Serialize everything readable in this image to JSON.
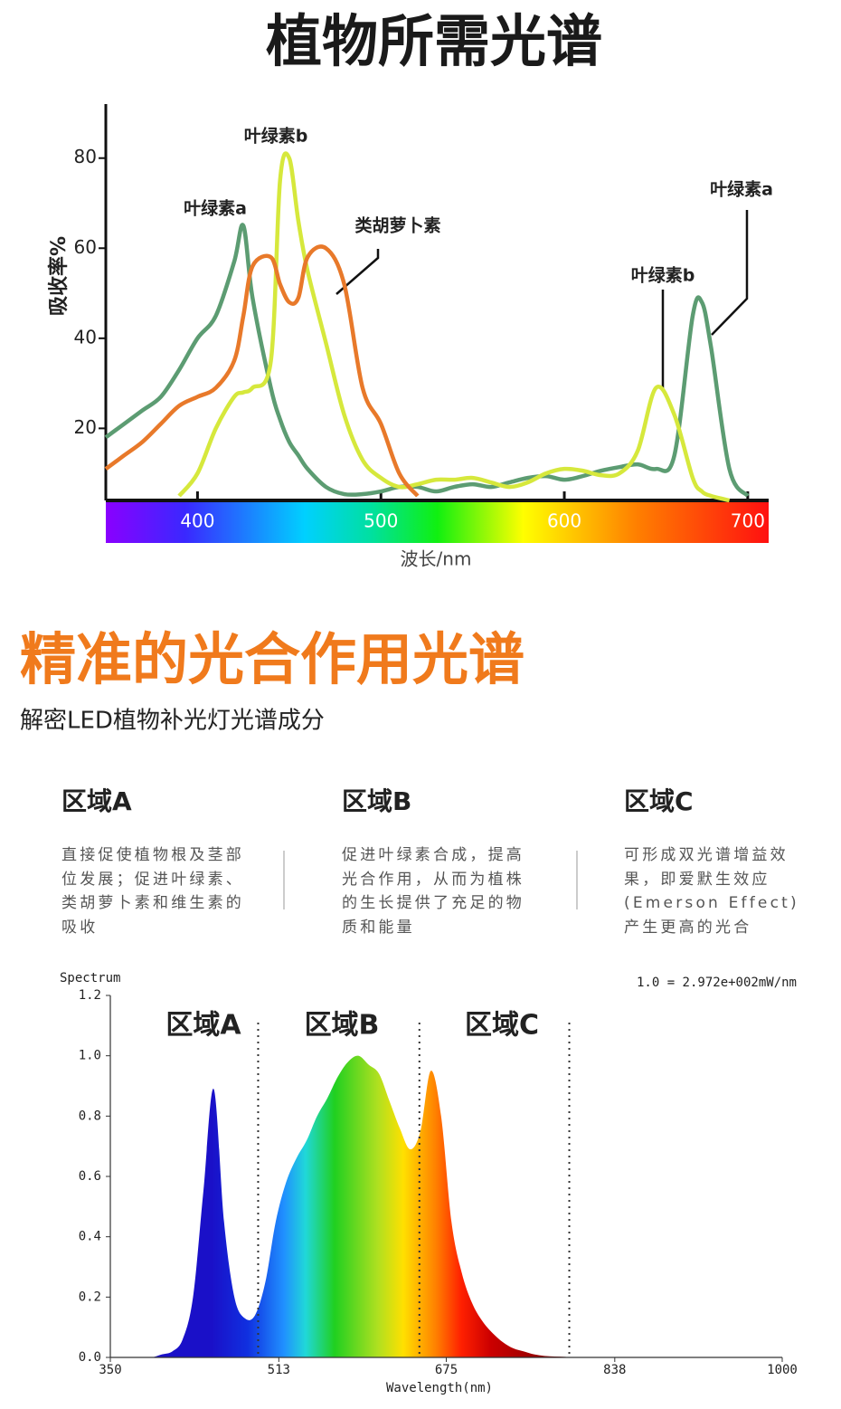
{
  "header": {
    "title": "植物所需光谱"
  },
  "section": {
    "title": "精准的光合作用光谱",
    "subtitle": "解密LED植物补光灯光谱成分"
  },
  "regions": [
    {
      "title": "区域A",
      "text": "直接促使植物根及茎部位发展；促进叶绿素、类胡萝卜素和维生素的吸收"
    },
    {
      "title": "区域B",
      "text": "促进叶绿素合成，提高光合作用，从而为植株的生长提供了充足的物质和能量"
    },
    {
      "title": "区域C",
      "text": "可形成双光谱增益效果，即爱默生效应(Emerson Effect)产生更高的光合"
    }
  ],
  "chart_data": [
    {
      "type": "line",
      "x_label": "波长/nm",
      "y_label": "吸收率%",
      "xlim": [
        350,
        705
      ],
      "ylim": [
        4,
        92
      ],
      "xticks": [
        400,
        500,
        600,
        700
      ],
      "yticks": [
        20,
        40,
        60,
        80
      ],
      "x": [
        350,
        360,
        370,
        380,
        390,
        400,
        410,
        420,
        425,
        430,
        440,
        445,
        450,
        455,
        460,
        470,
        480,
        490,
        500,
        510,
        520,
        530,
        540,
        550,
        560,
        570,
        580,
        590,
        600,
        610,
        620,
        630,
        640,
        650,
        660,
        670,
        675,
        680,
        690,
        700
      ],
      "series": [
        {
          "name": "叶绿素a",
          "color": "#5c9c72",
          "values": [
            18,
            21,
            24,
            27,
            33,
            40,
            45,
            57,
            65,
            49,
            29,
            22,
            17,
            14,
            11,
            7,
            5.4,
            5.4,
            6,
            7,
            7,
            6,
            7,
            7.6,
            7,
            8,
            9,
            9.4,
            8.6,
            9.4,
            10.6,
            11.4,
            12,
            11,
            14,
            45,
            48,
            38,
            11,
            5
          ]
        },
        {
          "name": "叶绿素b",
          "color": "#d6e83c",
          "values": [
            null,
            null,
            null,
            null,
            5,
            10,
            20,
            27,
            28,
            29,
            35,
            75,
            80,
            66,
            55,
            39,
            23,
            13,
            9,
            7,
            7.6,
            8.6,
            8.6,
            9,
            8,
            7,
            8,
            10,
            11,
            10.6,
            9.6,
            10,
            15,
            29,
            23,
            9,
            6,
            5,
            4,
            null
          ]
        },
        {
          "name": "类胡萝卜素",
          "color": "#e8792a",
          "values": [
            11,
            14,
            17,
            21,
            25,
            27,
            29,
            35,
            45,
            56,
            58,
            52,
            48,
            49,
            58,
            60,
            52,
            29,
            21,
            10,
            5,
            null,
            null,
            null,
            null,
            null,
            null,
            null,
            null,
            null,
            null,
            null,
            null,
            null,
            null,
            null,
            null,
            null,
            null,
            null
          ]
        }
      ]
    },
    {
      "type": "area",
      "x_label": "Wavelength(nm)",
      "y_label": "Spectrum",
      "annotation": "1.0 = 2.972e+002mW/nm",
      "xlim": [
        350,
        1000
      ],
      "ylim": [
        0,
        1.2
      ],
      "xticks": [
        350,
        513,
        675,
        838,
        1000
      ],
      "yticks": [
        {
          "value": 0,
          "label": "0.0"
        },
        0.2,
        0.4,
        0.6,
        0.8,
        {
          "value": 1,
          "label": "1.0"
        },
        1.2
      ],
      "x": [
        350,
        360,
        370,
        380,
        390,
        400,
        410,
        420,
        430,
        440,
        450,
        460,
        470,
        480,
        490,
        500,
        510,
        520,
        530,
        540,
        550,
        560,
        570,
        580,
        590,
        600,
        610,
        620,
        630,
        640,
        650,
        660,
        670,
        680,
        690,
        700,
        710,
        720,
        730,
        740,
        750,
        760,
        770,
        780,
        790,
        800
      ],
      "values": [
        0,
        0,
        0,
        0,
        0,
        0.01,
        0.02,
        0.06,
        0.2,
        0.55,
        0.89,
        0.45,
        0.2,
        0.13,
        0.14,
        0.25,
        0.45,
        0.58,
        0.66,
        0.72,
        0.8,
        0.86,
        0.93,
        0.98,
        1.0,
        0.97,
        0.94,
        0.85,
        0.76,
        0.69,
        0.75,
        0.95,
        0.8,
        0.45,
        0.28,
        0.18,
        0.12,
        0.08,
        0.05,
        0.03,
        0.02,
        0.01,
        0.005,
        0.003,
        0.002,
        0
      ],
      "regions": [
        "区域A",
        "区域B",
        "区域C"
      ],
      "dividers": [
        493,
        649,
        794
      ]
    }
  ]
}
